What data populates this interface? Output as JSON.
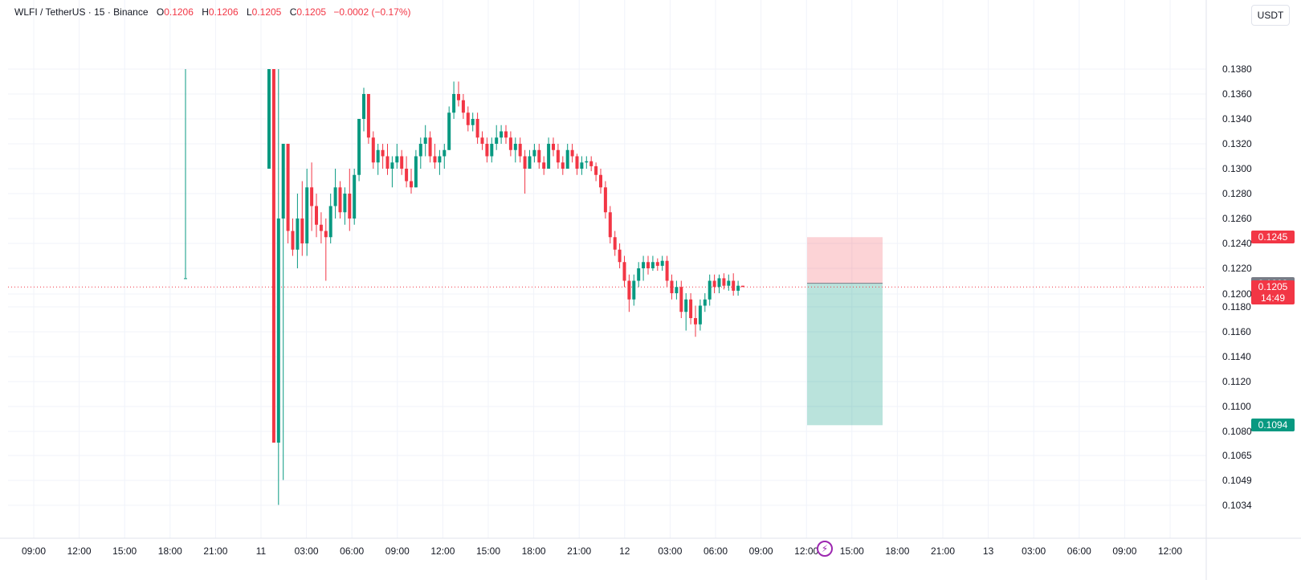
{
  "legend": {
    "symbol": "WLFI / TetherUS · 15 · Binance",
    "open_label": "O",
    "open": "0.1206",
    "high_label": "H",
    "high": "0.1206",
    "low_label": "L",
    "low": "0.1205",
    "close_label": "C",
    "close": "0.1205",
    "change": "−0.0002 (−0.17%)"
  },
  "currency_button": "USDT",
  "price_tags": {
    "stop": {
      "value": "0.1245",
      "color": "#f23645"
    },
    "entry": {
      "value": "0.1208",
      "color": "#787b86"
    },
    "last": {
      "value": "0.1205",
      "countdown": "14:49",
      "color": "#f23645"
    },
    "target": {
      "value": "0.1094",
      "color": "#089981"
    }
  },
  "colors": {
    "up": "#089981",
    "down": "#f23645",
    "grid": "#f0f3fa",
    "text": "#131722"
  },
  "icons": {
    "replay": "lightning-icon"
  },
  "chart_data": {
    "type": "candlestick",
    "y_ticks": [
      "0.1380",
      "0.1360",
      "0.1340",
      "0.1320",
      "0.1300",
      "0.1280",
      "0.1260",
      "0.1240",
      "0.1220",
      "0.1200",
      "0.1180",
      "0.1160",
      "0.1140",
      "0.1120",
      "0.1100",
      "0.1080",
      "0.1065",
      "0.1049",
      "0.1034"
    ],
    "x_ticks": [
      "09:00",
      "12:00",
      "15:00",
      "18:00",
      "21:00",
      "11",
      "03:00",
      "06:00",
      "09:00",
      "12:00",
      "15:00",
      "18:00",
      "21:00",
      "12",
      "03:00",
      "06:00",
      "09:00",
      "12:00",
      "15:00",
      "18:00",
      "21:00",
      "13",
      "03:00",
      "06:00",
      "09:00",
      "12:00"
    ],
    "x_range": [
      "09:00",
      "12:00"
    ],
    "y_range": [
      0.1034,
      0.138
    ],
    "last_price": 0.1205,
    "position": {
      "entry": 0.1208,
      "stop": 0.1245,
      "target": 0.1094,
      "start": "11:45 day 12",
      "end": "16:45 day 12"
    },
    "candles": [
      [
        0.1212,
        0.138,
        0.1212,
        0.1212
      ],
      [
        0.13,
        0.138,
        0.13,
        0.138
      ],
      [
        0.138,
        0.138,
        0.108,
        0.108
      ],
      [
        0.108,
        0.138,
        0.103,
        0.126
      ],
      [
        0.126,
        0.132,
        0.105,
        0.132
      ],
      [
        0.132,
        0.132,
        0.124,
        0.125
      ],
      [
        0.125,
        0.126,
        0.123,
        0.1235
      ],
      [
        0.1235,
        0.128,
        0.122,
        0.126
      ],
      [
        0.126,
        0.129,
        0.123,
        0.124
      ],
      [
        0.124,
        0.13,
        0.123,
        0.1285
      ],
      [
        0.1285,
        0.1305,
        0.125,
        0.127
      ],
      [
        0.127,
        0.128,
        0.1245,
        0.1255
      ],
      [
        0.1255,
        0.1265,
        0.124,
        0.125
      ],
      [
        0.125,
        0.126,
        0.121,
        0.1245
      ],
      [
        0.1245,
        0.128,
        0.124,
        0.127
      ],
      [
        0.127,
        0.13,
        0.126,
        0.1285
      ],
      [
        0.1285,
        0.129,
        0.126,
        0.1265
      ],
      [
        0.1265,
        0.1285,
        0.1255,
        0.128
      ],
      [
        0.128,
        0.13,
        0.125,
        0.126
      ],
      [
        0.126,
        0.13,
        0.1255,
        0.1295
      ],
      [
        0.1295,
        0.134,
        0.129,
        0.134
      ],
      [
        0.134,
        0.1365,
        0.133,
        0.136
      ],
      [
        0.136,
        0.136,
        0.132,
        0.1325
      ],
      [
        0.1325,
        0.133,
        0.13,
        0.1305
      ],
      [
        0.1305,
        0.132,
        0.1295,
        0.1315
      ],
      [
        0.1315,
        0.132,
        0.13,
        0.131
      ],
      [
        0.131,
        0.132,
        0.1295,
        0.13
      ],
      [
        0.13,
        0.131,
        0.1285,
        0.1305
      ],
      [
        0.1305,
        0.132,
        0.13,
        0.131
      ],
      [
        0.131,
        0.1315,
        0.1295,
        0.13
      ],
      [
        0.13,
        0.131,
        0.1285,
        0.129
      ],
      [
        0.129,
        0.13,
        0.128,
        0.1285
      ],
      [
        0.1285,
        0.1315,
        0.1285,
        0.131
      ],
      [
        0.131,
        0.1325,
        0.13,
        0.132
      ],
      [
        0.132,
        0.1335,
        0.131,
        0.1325
      ],
      [
        0.1325,
        0.133,
        0.1305,
        0.131
      ],
      [
        0.131,
        0.132,
        0.13,
        0.1305
      ],
      [
        0.1305,
        0.1315,
        0.1295,
        0.131
      ],
      [
        0.131,
        0.132,
        0.13,
        0.1315
      ],
      [
        0.1315,
        0.135,
        0.1315,
        0.1345
      ],
      [
        0.1345,
        0.137,
        0.134,
        0.136
      ],
      [
        0.136,
        0.137,
        0.135,
        0.1355
      ],
      [
        0.1355,
        0.136,
        0.134,
        0.1345
      ],
      [
        0.1345,
        0.135,
        0.133,
        0.1335
      ],
      [
        0.1335,
        0.1345,
        0.133,
        0.134
      ],
      [
        0.134,
        0.1345,
        0.132,
        0.1325
      ],
      [
        0.1325,
        0.133,
        0.1315,
        0.132
      ],
      [
        0.132,
        0.1325,
        0.1305,
        0.131
      ],
      [
        0.131,
        0.1325,
        0.1305,
        0.132
      ],
      [
        0.132,
        0.1335,
        0.1315,
        0.1325
      ],
      [
        0.1325,
        0.1335,
        0.132,
        0.133
      ],
      [
        0.133,
        0.1335,
        0.132,
        0.1325
      ],
      [
        0.1325,
        0.133,
        0.131,
        0.1315
      ],
      [
        0.1315,
        0.1325,
        0.1305,
        0.132
      ],
      [
        0.132,
        0.1325,
        0.1305,
        0.131
      ],
      [
        0.131,
        0.1315,
        0.128,
        0.13
      ],
      [
        0.13,
        0.1315,
        0.13,
        0.131
      ],
      [
        0.131,
        0.132,
        0.1305,
        0.1315
      ],
      [
        0.1315,
        0.132,
        0.13,
        0.1305
      ],
      [
        0.1305,
        0.131,
        0.1295,
        0.13
      ],
      [
        0.13,
        0.1325,
        0.13,
        0.132
      ],
      [
        0.132,
        0.1325,
        0.131,
        0.1315
      ],
      [
        0.1315,
        0.132,
        0.13,
        0.1305
      ],
      [
        0.1305,
        0.131,
        0.1295,
        0.13
      ],
      [
        0.13,
        0.132,
        0.13,
        0.1315
      ],
      [
        0.1315,
        0.132,
        0.1305,
        0.131
      ],
      [
        0.131,
        0.1312,
        0.1295,
        0.13
      ],
      [
        0.13,
        0.131,
        0.1295,
        0.1305
      ],
      [
        0.1305,
        0.131,
        0.13,
        0.1306
      ],
      [
        0.1306,
        0.131,
        0.1298,
        0.1302
      ],
      [
        0.1302,
        0.1305,
        0.129,
        0.1295
      ],
      [
        0.1295,
        0.13,
        0.128,
        0.1285
      ],
      [
        0.1285,
        0.129,
        0.126,
        0.1265
      ],
      [
        0.1265,
        0.127,
        0.124,
        0.1245
      ],
      [
        0.1245,
        0.125,
        0.123,
        0.1235
      ],
      [
        0.1235,
        0.124,
        0.122,
        0.1225
      ],
      [
        0.1225,
        0.123,
        0.1205,
        0.121
      ],
      [
        0.121,
        0.1215,
        0.1185,
        0.1195
      ],
      [
        0.1195,
        0.1215,
        0.119,
        0.121
      ],
      [
        0.121,
        0.1225,
        0.1205,
        0.122
      ],
      [
        0.122,
        0.123,
        0.121,
        0.1225
      ],
      [
        0.1225,
        0.123,
        0.1215,
        0.122
      ],
      [
        0.122,
        0.123,
        0.1218,
        0.1225
      ],
      [
        0.1225,
        0.1228,
        0.1218,
        0.1222
      ],
      [
        0.1222,
        0.123,
        0.1218,
        0.1226
      ],
      [
        0.1226,
        0.123,
        0.1205,
        0.121
      ],
      [
        0.121,
        0.1215,
        0.1195,
        0.12
      ],
      [
        0.12,
        0.121,
        0.1195,
        0.1205
      ],
      [
        0.1205,
        0.121,
        0.118,
        0.1185
      ],
      [
        0.1185,
        0.12,
        0.117,
        0.1195
      ],
      [
        0.1195,
        0.12,
        0.1175,
        0.118
      ],
      [
        0.118,
        0.119,
        0.1165,
        0.1175
      ],
      [
        0.1175,
        0.1195,
        0.117,
        0.119
      ],
      [
        0.119,
        0.12,
        0.1185,
        0.1195
      ],
      [
        0.1195,
        0.1215,
        0.119,
        0.121
      ],
      [
        0.121,
        0.1215,
        0.12,
        0.1205
      ],
      [
        0.1205,
        0.1215,
        0.12,
        0.1212
      ],
      [
        0.1212,
        0.1216,
        0.1203,
        0.1206
      ],
      [
        0.1206,
        0.1215,
        0.1202,
        0.121
      ],
      [
        0.121,
        0.1216,
        0.1198,
        0.1202
      ],
      [
        0.1202,
        0.121,
        0.1198,
        0.1206
      ],
      [
        0.1206,
        0.1206,
        0.1205,
        0.1205
      ]
    ]
  }
}
